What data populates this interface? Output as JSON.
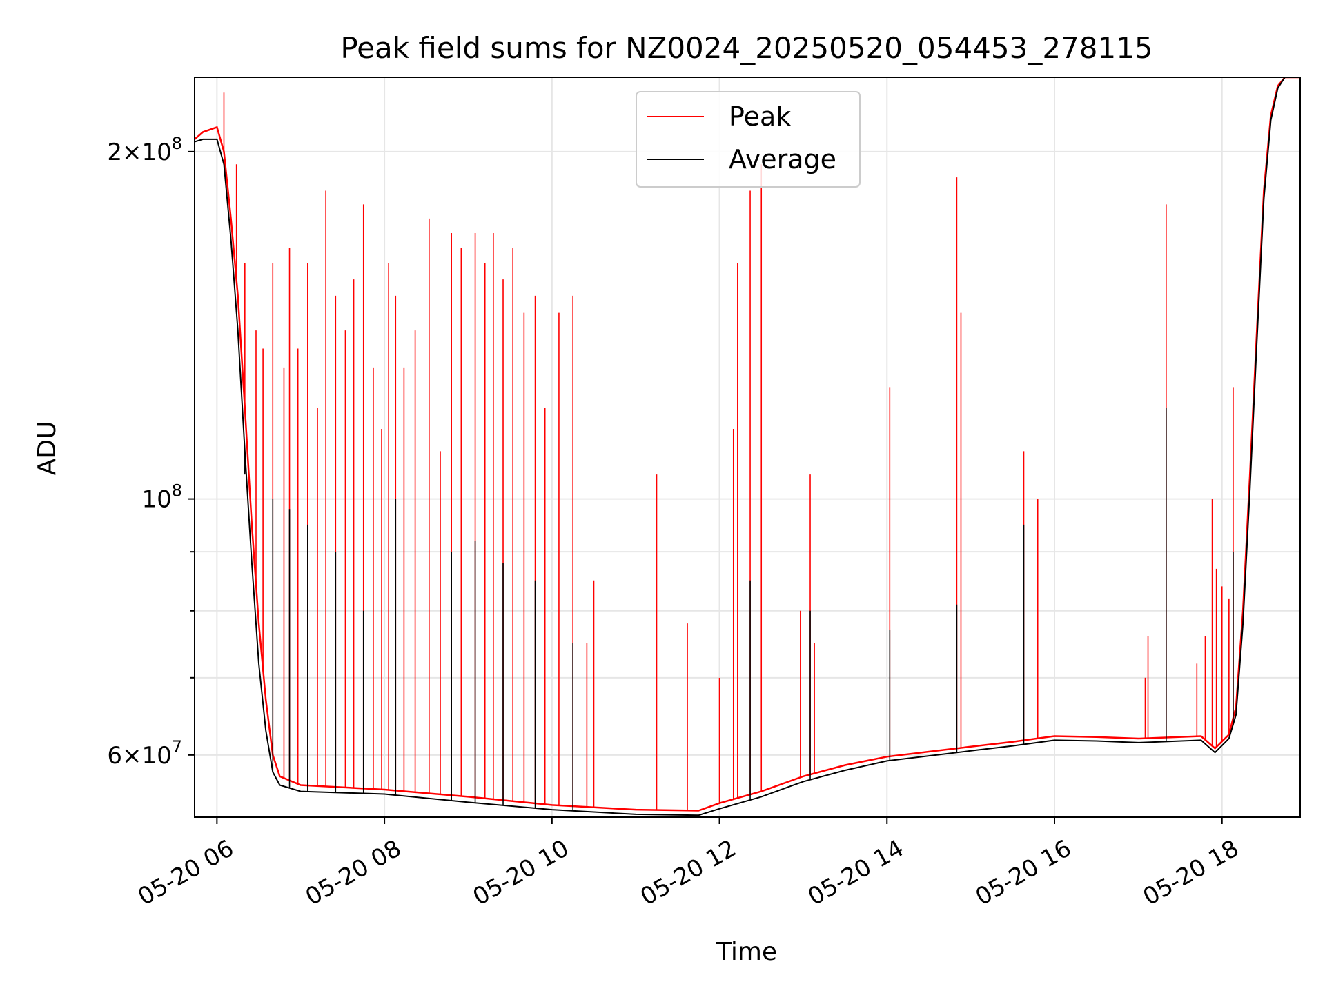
{
  "chart_data": {
    "type": "line",
    "title": "Peak field sums for NZ0024_20250520_054453_278115",
    "xlabel": "Time",
    "ylabel": "ADU",
    "x_scale": "time",
    "y_scale": "log",
    "xlim": [
      "2025-05-20T05:44",
      "2025-05-20T18:56"
    ],
    "ylim": [
      53000000,
      232000000
    ],
    "grid": true,
    "legend_position": "top-center",
    "x_ticks": [
      {
        "label": "05-20 06",
        "value": "2025-05-20T06:00"
      },
      {
        "label": "05-20 08",
        "value": "2025-05-20T08:00"
      },
      {
        "label": "05-20 10",
        "value": "2025-05-20T10:00"
      },
      {
        "label": "05-20 12",
        "value": "2025-05-20T12:00"
      },
      {
        "label": "05-20 14",
        "value": "2025-05-20T14:00"
      },
      {
        "label": "05-20 16",
        "value": "2025-05-20T16:00"
      },
      {
        "label": "05-20 18",
        "value": "2025-05-20T18:00"
      }
    ],
    "y_ticks": [
      {
        "base": "2",
        "exp": "8",
        "value": 200000000
      },
      {
        "base": "",
        "exp": "8",
        "value": 100000000
      },
      {
        "base": "6",
        "exp": "7",
        "value": 60000000
      }
    ],
    "series": [
      {
        "name": "Peak",
        "color": "#ff0000",
        "points": [
          [
            "2025-05-20T05:44",
            205000000
          ],
          [
            "2025-05-20T05:50",
            208000000
          ],
          [
            "2025-05-20T06:00",
            210000000
          ],
          [
            "2025-05-20T06:05",
            200000000
          ],
          [
            "2025-05-20T06:10",
            175000000
          ],
          [
            "2025-05-20T06:15",
            150000000
          ],
          [
            "2025-05-20T06:20",
            120000000
          ],
          [
            "2025-05-20T06:25",
            95000000
          ],
          [
            "2025-05-20T06:30",
            78000000
          ],
          [
            "2025-05-20T06:35",
            67000000
          ],
          [
            "2025-05-20T06:40",
            60000000
          ],
          [
            "2025-05-20T06:45",
            57500000
          ],
          [
            "2025-05-20T07:00",
            56500000
          ],
          [
            "2025-05-20T08:00",
            56000000
          ],
          [
            "2025-05-20T09:00",
            55200000
          ],
          [
            "2025-05-20T10:00",
            54300000
          ],
          [
            "2025-05-20T11:00",
            53800000
          ],
          [
            "2025-05-20T11:45",
            53700000
          ],
          [
            "2025-05-20T12:00",
            54500000
          ],
          [
            "2025-05-20T12:30",
            55800000
          ],
          [
            "2025-05-20T13:00",
            57500000
          ],
          [
            "2025-05-20T13:30",
            58800000
          ],
          [
            "2025-05-20T14:00",
            59800000
          ],
          [
            "2025-05-20T14:30",
            60400000
          ],
          [
            "2025-05-20T15:00",
            61000000
          ],
          [
            "2025-05-20T15:30",
            61600000
          ],
          [
            "2025-05-20T16:00",
            62300000
          ],
          [
            "2025-05-20T16:30",
            62200000
          ],
          [
            "2025-05-20T17:00",
            62000000
          ],
          [
            "2025-05-20T17:45",
            62300000
          ],
          [
            "2025-05-20T17:55",
            60800000
          ],
          [
            "2025-05-20T18:05",
            62500000
          ],
          [
            "2025-05-20T18:10",
            66000000
          ],
          [
            "2025-05-20T18:15",
            80000000
          ],
          [
            "2025-05-20T18:20",
            105000000
          ],
          [
            "2025-05-20T18:25",
            140000000
          ],
          [
            "2025-05-20T18:30",
            185000000
          ],
          [
            "2025-05-20T18:35",
            215000000
          ],
          [
            "2025-05-20T18:40",
            228000000
          ],
          [
            "2025-05-20T18:45",
            232000000
          ],
          [
            "2025-05-20T18:56",
            232000000
          ]
        ],
        "spikes": [
          [
            "2025-05-20T06:05",
            225000000
          ],
          [
            "2025-05-20T06:14",
            195000000
          ],
          [
            "2025-05-20T06:20",
            160000000
          ],
          [
            "2025-05-20T06:28",
            140000000
          ],
          [
            "2025-05-20T06:33",
            135000000
          ],
          [
            "2025-05-20T06:40",
            160000000
          ],
          [
            "2025-05-20T06:48",
            130000000
          ],
          [
            "2025-05-20T06:52",
            165000000
          ],
          [
            "2025-05-20T06:58",
            135000000
          ],
          [
            "2025-05-20T07:05",
            160000000
          ],
          [
            "2025-05-20T07:12",
            120000000
          ],
          [
            "2025-05-20T07:18",
            185000000
          ],
          [
            "2025-05-20T07:25",
            150000000
          ],
          [
            "2025-05-20T07:32",
            140000000
          ],
          [
            "2025-05-20T07:38",
            155000000
          ],
          [
            "2025-05-20T07:45",
            180000000
          ],
          [
            "2025-05-20T07:52",
            130000000
          ],
          [
            "2025-05-20T07:58",
            115000000
          ],
          [
            "2025-05-20T08:03",
            160000000
          ],
          [
            "2025-05-20T08:08",
            150000000
          ],
          [
            "2025-05-20T08:14",
            130000000
          ],
          [
            "2025-05-20T08:22",
            140000000
          ],
          [
            "2025-05-20T08:32",
            175000000
          ],
          [
            "2025-05-20T08:40",
            110000000
          ],
          [
            "2025-05-20T08:48",
            170000000
          ],
          [
            "2025-05-20T08:55",
            165000000
          ],
          [
            "2025-05-20T09:05",
            170000000
          ],
          [
            "2025-05-20T09:12",
            160000000
          ],
          [
            "2025-05-20T09:18",
            170000000
          ],
          [
            "2025-05-20T09:25",
            155000000
          ],
          [
            "2025-05-20T09:32",
            165000000
          ],
          [
            "2025-05-20T09:40",
            145000000
          ],
          [
            "2025-05-20T09:48",
            150000000
          ],
          [
            "2025-05-20T09:55",
            120000000
          ],
          [
            "2025-05-20T10:05",
            145000000
          ],
          [
            "2025-05-20T10:15",
            150000000
          ],
          [
            "2025-05-20T10:25",
            75000000
          ],
          [
            "2025-05-20T10:30",
            85000000
          ],
          [
            "2025-05-20T11:15",
            105000000
          ],
          [
            "2025-05-20T11:37",
            78000000
          ],
          [
            "2025-05-20T12:00",
            70000000
          ],
          [
            "2025-05-20T12:10",
            115000000
          ],
          [
            "2025-05-20T12:13",
            160000000
          ],
          [
            "2025-05-20T12:22",
            185000000
          ],
          [
            "2025-05-20T12:30",
            195000000
          ],
          [
            "2025-05-20T12:58",
            80000000
          ],
          [
            "2025-05-20T13:05",
            105000000
          ],
          [
            "2025-05-20T13:08",
            75000000
          ],
          [
            "2025-05-20T14:02",
            125000000
          ],
          [
            "2025-05-20T14:50",
            190000000
          ],
          [
            "2025-05-20T14:53",
            145000000
          ],
          [
            "2025-05-20T15:38",
            110000000
          ],
          [
            "2025-05-20T15:48",
            100000000
          ],
          [
            "2025-05-20T17:05",
            70000000
          ],
          [
            "2025-05-20T17:07",
            76000000
          ],
          [
            "2025-05-20T17:20",
            180000000
          ],
          [
            "2025-05-20T17:42",
            72000000
          ],
          [
            "2025-05-20T17:48",
            76000000
          ],
          [
            "2025-05-20T17:53",
            100000000
          ],
          [
            "2025-05-20T17:56",
            87000000
          ],
          [
            "2025-05-20T18:00",
            84000000
          ],
          [
            "2025-05-20T18:05",
            82000000
          ],
          [
            "2025-05-20T18:08",
            125000000
          ]
        ]
      },
      {
        "name": "Average",
        "color": "#000000",
        "points": [
          [
            "2025-05-20T05:44",
            204000000
          ],
          [
            "2025-05-20T05:50",
            205000000
          ],
          [
            "2025-05-20T06:00",
            205000000
          ],
          [
            "2025-05-20T06:05",
            195000000
          ],
          [
            "2025-05-20T06:10",
            168000000
          ],
          [
            "2025-05-20T06:15",
            140000000
          ],
          [
            "2025-05-20T06:20",
            110000000
          ],
          [
            "2025-05-20T06:25",
            88000000
          ],
          [
            "2025-05-20T06:30",
            72000000
          ],
          [
            "2025-05-20T06:35",
            63000000
          ],
          [
            "2025-05-20T06:40",
            58000000
          ],
          [
            "2025-05-20T06:45",
            56500000
          ],
          [
            "2025-05-20T07:00",
            55800000
          ],
          [
            "2025-05-20T08:00",
            55500000
          ],
          [
            "2025-05-20T09:00",
            54600000
          ],
          [
            "2025-05-20T10:00",
            53800000
          ],
          [
            "2025-05-20T11:00",
            53300000
          ],
          [
            "2025-05-20T11:45",
            53200000
          ],
          [
            "2025-05-20T12:00",
            53900000
          ],
          [
            "2025-05-20T12:30",
            55200000
          ],
          [
            "2025-05-20T13:00",
            56900000
          ],
          [
            "2025-05-20T13:30",
            58200000
          ],
          [
            "2025-05-20T14:00",
            59300000
          ],
          [
            "2025-05-20T14:30",
            59900000
          ],
          [
            "2025-05-20T15:00",
            60500000
          ],
          [
            "2025-05-20T15:30",
            61100000
          ],
          [
            "2025-05-20T16:00",
            61800000
          ],
          [
            "2025-05-20T16:30",
            61700000
          ],
          [
            "2025-05-20T17:00",
            61500000
          ],
          [
            "2025-05-20T17:45",
            61800000
          ],
          [
            "2025-05-20T17:55",
            60300000
          ],
          [
            "2025-05-20T18:05",
            62000000
          ],
          [
            "2025-05-20T18:10",
            65000000
          ],
          [
            "2025-05-20T18:15",
            78000000
          ],
          [
            "2025-05-20T18:20",
            102000000
          ],
          [
            "2025-05-20T18:25",
            137000000
          ],
          [
            "2025-05-20T18:30",
            182000000
          ],
          [
            "2025-05-20T18:35",
            213000000
          ],
          [
            "2025-05-20T18:40",
            227000000
          ],
          [
            "2025-05-20T18:45",
            232000000
          ],
          [
            "2025-05-20T18:56",
            232000000
          ]
        ],
        "spikes": [
          [
            "2025-05-20T06:20",
            105000000
          ],
          [
            "2025-05-20T06:40",
            100000000
          ],
          [
            "2025-05-20T06:52",
            98000000
          ],
          [
            "2025-05-20T07:05",
            95000000
          ],
          [
            "2025-05-20T07:25",
            90000000
          ],
          [
            "2025-05-20T07:45",
            80000000
          ],
          [
            "2025-05-20T08:08",
            100000000
          ],
          [
            "2025-05-20T08:48",
            90000000
          ],
          [
            "2025-05-20T09:05",
            92000000
          ],
          [
            "2025-05-20T09:25",
            88000000
          ],
          [
            "2025-05-20T09:48",
            85000000
          ],
          [
            "2025-05-20T10:15",
            75000000
          ],
          [
            "2025-05-20T12:22",
            85000000
          ],
          [
            "2025-05-20T13:05",
            80000000
          ],
          [
            "2025-05-20T14:02",
            77000000
          ],
          [
            "2025-05-20T14:50",
            81000000
          ],
          [
            "2025-05-20T15:38",
            95000000
          ],
          [
            "2025-05-20T17:20",
            120000000
          ],
          [
            "2025-05-20T18:08",
            90000000
          ]
        ]
      }
    ]
  }
}
